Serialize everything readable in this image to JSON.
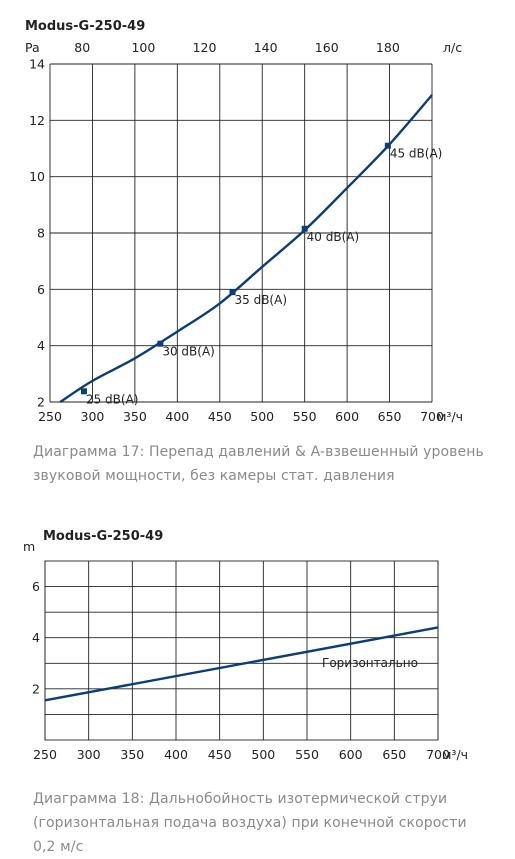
{
  "chart_data": [
    {
      "type": "line",
      "title": "Modus-G-250-49",
      "ylabel": "Pa",
      "xlabel": "м³/ч",
      "x2label": "л/с",
      "xlim": [
        250,
        700
      ],
      "ylim": [
        2,
        14
      ],
      "x_ticks": [
        250,
        300,
        350,
        400,
        450,
        500,
        550,
        600,
        650,
        700
      ],
      "y_ticks": [
        2,
        4,
        6,
        8,
        10,
        12,
        14
      ],
      "x2_ticks": [
        80,
        100,
        120,
        140,
        160,
        180
      ],
      "grid": true,
      "series": [
        {
          "x": [
            262,
            300,
            350,
            400,
            450,
            500,
            550,
            600,
            650,
            700
          ],
          "y": [
            2.0,
            2.75,
            3.55,
            4.5,
            5.5,
            6.8,
            8.1,
            9.6,
            11.15,
            12.9
          ]
        }
      ],
      "markers": [
        {
          "x": 290,
          "y": 2.38,
          "label": "25 dB(A)"
        },
        {
          "x": 380,
          "y": 4.07,
          "label": "30 dB(A)"
        },
        {
          "x": 465,
          "y": 5.9,
          "label": "35 dB(A)"
        },
        {
          "x": 550,
          "y": 8.15,
          "label": "40 dB(A)"
        },
        {
          "x": 648,
          "y": 11.1,
          "label": "45 dB(A)"
        }
      ],
      "caption": "Диаграмма 17: Перепад давлений & A-взвешенный уровень звуковой мощности,  без камеры стат. давления"
    },
    {
      "type": "line",
      "title": "Modus-G-250-49",
      "ylabel": "m",
      "xlabel": "м³/ч",
      "xlim": [
        250,
        700
      ],
      "ylim": [
        0,
        7
      ],
      "x_ticks": [
        250,
        300,
        350,
        400,
        450,
        500,
        550,
        600,
        650,
        700
      ],
      "y_ticks": [
        2,
        4,
        6
      ],
      "grid": true,
      "series": [
        {
          "name": "Горизонтально",
          "x": [
            250,
            700
          ],
          "y": [
            1.55,
            4.4
          ]
        }
      ],
      "caption": "Диаграмма 18: Дальнобойность изотермической струи (горизонтальная подача воздуха) при конечной скорости 0,2 м/с"
    }
  ],
  "colors": {
    "curve": "#0b3d78",
    "grid": "#222222",
    "caption": "#8a8a8a"
  }
}
